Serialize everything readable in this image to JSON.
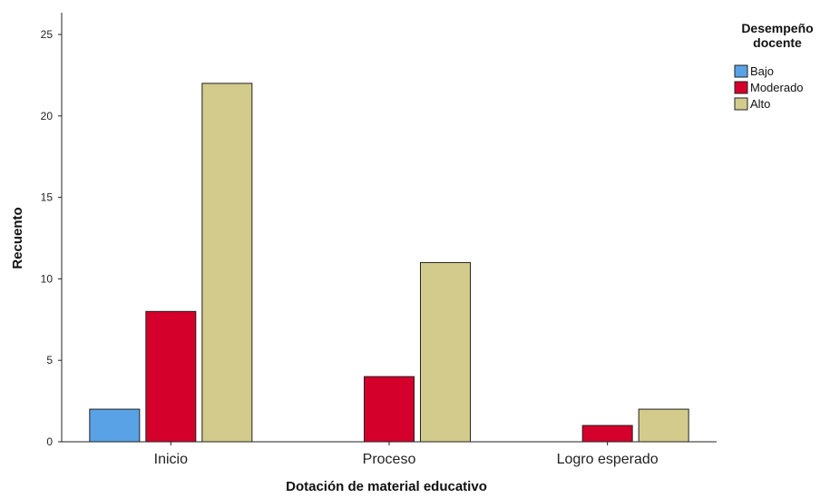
{
  "chart_data": {
    "type": "bar",
    "title": "",
    "categories": [
      "Inicio",
      "Proceso",
      "Logro esperado"
    ],
    "series": [
      {
        "name": "Bajo",
        "color": "#5aa2e6",
        "values": [
          2,
          0,
          0
        ]
      },
      {
        "name": "Moderado",
        "color": "#d4002b",
        "values": [
          8,
          4,
          1
        ]
      },
      {
        "name": "Alto",
        "color": "#d2cb8c",
        "values": [
          22,
          11,
          2
        ]
      }
    ],
    "xlabel": "Dotación de material educativo",
    "ylabel": "Recuento",
    "ylim": [
      0,
      25
    ],
    "yticks": [
      0,
      5,
      10,
      15,
      20,
      25
    ],
    "grid": false,
    "legend": {
      "title_lines": [
        "Desempeño",
        "docente"
      ],
      "position": "top-right"
    }
  }
}
